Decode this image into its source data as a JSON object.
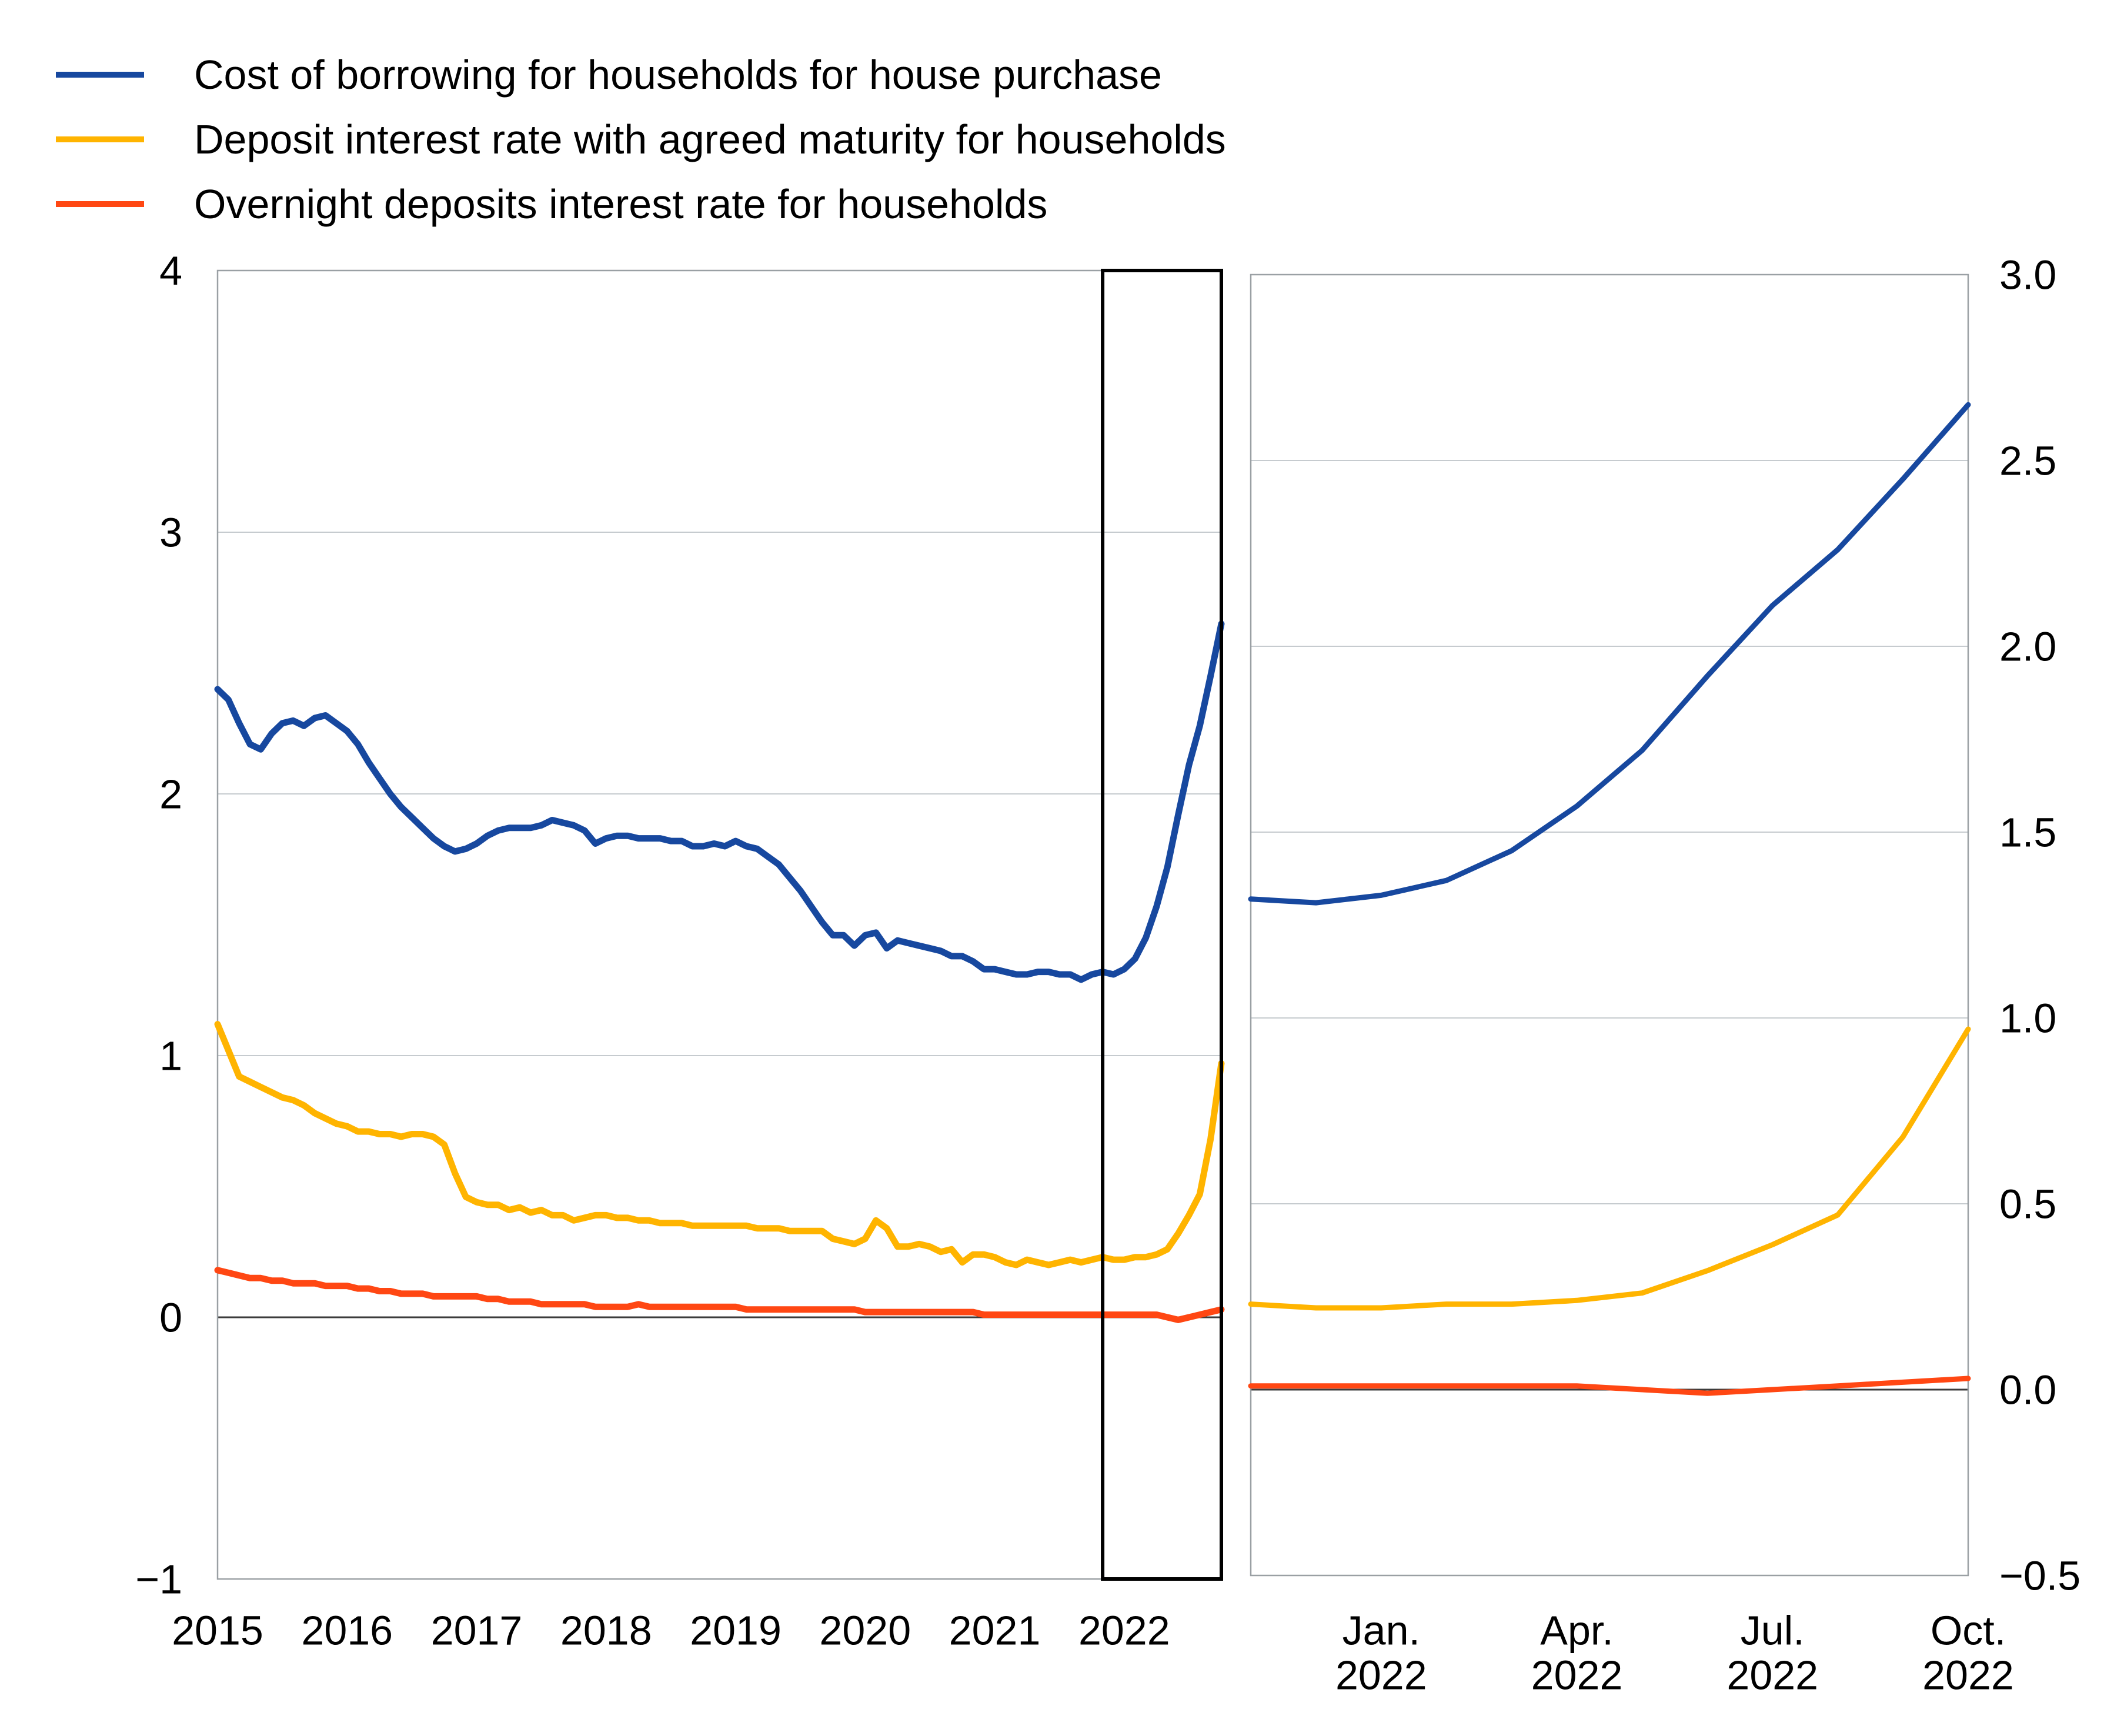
{
  "legend": {
    "items": [
      {
        "label": "Cost of borrowing for households for house purchase",
        "color": "#17489f"
      },
      {
        "label": "Deposit interest rate with agreed maturity for households",
        "color": "#ffb400"
      },
      {
        "label": "Overnight deposits interest rate for households",
        "color": "#ff4713"
      }
    ]
  },
  "colors": {
    "grid": "#c6cbcf",
    "border": "#9aa0a4",
    "zero_line": "#3c3c3c",
    "highlight_box": "#000000"
  },
  "chart_data": [
    {
      "id": "long-run-panel",
      "type": "line",
      "x_unit": "month",
      "x_start": "2015-01",
      "x_end": "2022-10",
      "xticklabels": [
        "2015",
        "2016",
        "2017",
        "2018",
        "2019",
        "2020",
        "2021",
        "2022"
      ],
      "xtick_month_indices": [
        0,
        12,
        24,
        36,
        48,
        60,
        72,
        84
      ],
      "ylim": [
        -1,
        4
      ],
      "yticks": [
        4,
        3,
        2,
        1,
        0,
        -1
      ],
      "yticklabels": [
        "4",
        "3",
        "2",
        "1",
        "0",
        "−1"
      ],
      "grid_values": [
        3,
        2,
        1
      ],
      "zero_line": 0,
      "legend_position": "top-left",
      "highlight_box": {
        "from": "2021-11",
        "to": "2022-10",
        "from_index": 82,
        "to_index": 93
      },
      "series": [
        {
          "name": "Cost of borrowing for households for house purchase",
          "values": [
            2.4,
            2.36,
            2.27,
            2.19,
            2.17,
            2.23,
            2.27,
            2.28,
            2.26,
            2.29,
            2.3,
            2.27,
            2.24,
            2.19,
            2.12,
            2.06,
            2.0,
            1.95,
            1.91,
            1.87,
            1.83,
            1.8,
            1.78,
            1.79,
            1.81,
            1.84,
            1.86,
            1.87,
            1.87,
            1.87,
            1.88,
            1.9,
            1.89,
            1.88,
            1.86,
            1.81,
            1.83,
            1.84,
            1.84,
            1.83,
            1.83,
            1.83,
            1.82,
            1.82,
            1.8,
            1.8,
            1.81,
            1.8,
            1.82,
            1.8,
            1.79,
            1.76,
            1.73,
            1.68,
            1.63,
            1.57,
            1.51,
            1.46,
            1.46,
            1.42,
            1.46,
            1.47,
            1.41,
            1.44,
            1.43,
            1.42,
            1.41,
            1.4,
            1.38,
            1.38,
            1.36,
            1.33,
            1.33,
            1.32,
            1.31,
            1.31,
            1.32,
            1.32,
            1.31,
            1.31,
            1.29,
            1.31,
            1.32,
            1.31,
            1.33,
            1.37,
            1.45,
            1.57,
            1.72,
            1.92,
            2.11,
            2.26,
            2.45,
            2.65
          ]
        },
        {
          "name": "Deposit interest rate with agreed maturity for households",
          "values": [
            1.12,
            1.02,
            0.92,
            0.9,
            0.88,
            0.86,
            0.84,
            0.83,
            0.81,
            0.78,
            0.76,
            0.74,
            0.73,
            0.71,
            0.71,
            0.7,
            0.7,
            0.69,
            0.7,
            0.7,
            0.69,
            0.66,
            0.55,
            0.46,
            0.44,
            0.43,
            0.43,
            0.41,
            0.42,
            0.4,
            0.41,
            0.39,
            0.39,
            0.37,
            0.38,
            0.39,
            0.39,
            0.38,
            0.38,
            0.37,
            0.37,
            0.36,
            0.36,
            0.36,
            0.35,
            0.35,
            0.35,
            0.35,
            0.35,
            0.35,
            0.34,
            0.34,
            0.34,
            0.33,
            0.33,
            0.33,
            0.33,
            0.3,
            0.29,
            0.28,
            0.3,
            0.37,
            0.34,
            0.27,
            0.27,
            0.28,
            0.27,
            0.25,
            0.26,
            0.21,
            0.24,
            0.24,
            0.23,
            0.21,
            0.2,
            0.22,
            0.21,
            0.2,
            0.21,
            0.22,
            0.21,
            0.22,
            0.23,
            0.22,
            0.22,
            0.23,
            0.23,
            0.24,
            0.26,
            0.32,
            0.39,
            0.47,
            0.68,
            0.97
          ]
        },
        {
          "name": "Overnight deposits interest rate for households",
          "values": [
            0.18,
            0.17,
            0.16,
            0.15,
            0.15,
            0.14,
            0.14,
            0.13,
            0.13,
            0.13,
            0.12,
            0.12,
            0.12,
            0.11,
            0.11,
            0.1,
            0.1,
            0.09,
            0.09,
            0.09,
            0.08,
            0.08,
            0.08,
            0.08,
            0.08,
            0.07,
            0.07,
            0.06,
            0.06,
            0.06,
            0.05,
            0.05,
            0.05,
            0.05,
            0.05,
            0.04,
            0.04,
            0.04,
            0.04,
            0.05,
            0.04,
            0.04,
            0.04,
            0.04,
            0.04,
            0.04,
            0.04,
            0.04,
            0.04,
            0.03,
            0.03,
            0.03,
            0.03,
            0.03,
            0.03,
            0.03,
            0.03,
            0.03,
            0.03,
            0.03,
            0.02,
            0.02,
            0.02,
            0.02,
            0.02,
            0.02,
            0.02,
            0.02,
            0.02,
            0.02,
            0.02,
            0.01,
            0.01,
            0.01,
            0.01,
            0.01,
            0.01,
            0.01,
            0.01,
            0.01,
            0.01,
            0.01,
            0.01,
            0.01,
            0.01,
            0.01,
            0.01,
            0.01,
            0.0,
            -0.01,
            0.0,
            0.01,
            0.02,
            0.03
          ]
        }
      ]
    },
    {
      "id": "zoom-2022-panel",
      "type": "line",
      "x_unit": "month",
      "x_start": "2021-11",
      "x_end": "2022-10",
      "xticklabels": [
        [
          "Jan.",
          "2022"
        ],
        [
          "Apr.",
          "2022"
        ],
        [
          "Jul.",
          "2022"
        ],
        [
          "Oct.",
          "2022"
        ]
      ],
      "xtick_month_indices": [
        2,
        5,
        8,
        11
      ],
      "ylim": [
        -0.5,
        3.0
      ],
      "yticks": [
        3.0,
        2.5,
        2.0,
        1.5,
        1.0,
        0.5,
        0.0,
        -0.5
      ],
      "yticklabels": [
        "3.0",
        "2.5",
        "2.0",
        "1.5",
        "1.0",
        "0.5",
        "0.0",
        "−0.5"
      ],
      "yaxis_side": "right",
      "grid_values": [
        2.5,
        2.0,
        1.5,
        1.0,
        0.5
      ],
      "zero_line": 0,
      "series": [
        {
          "name": "Cost of borrowing for households for house purchase",
          "values": [
            1.32,
            1.31,
            1.33,
            1.37,
            1.45,
            1.57,
            1.72,
            1.92,
            2.11,
            2.26,
            2.45,
            2.65
          ]
        },
        {
          "name": "Deposit interest rate with agreed maturity for households",
          "values": [
            0.23,
            0.22,
            0.22,
            0.23,
            0.23,
            0.24,
            0.26,
            0.32,
            0.39,
            0.47,
            0.68,
            0.97
          ]
        },
        {
          "name": "Overnight deposits interest rate for households",
          "values": [
            0.01,
            0.01,
            0.01,
            0.01,
            0.01,
            0.01,
            0.0,
            -0.01,
            0.0,
            0.01,
            0.02,
            0.03
          ]
        }
      ]
    }
  ]
}
